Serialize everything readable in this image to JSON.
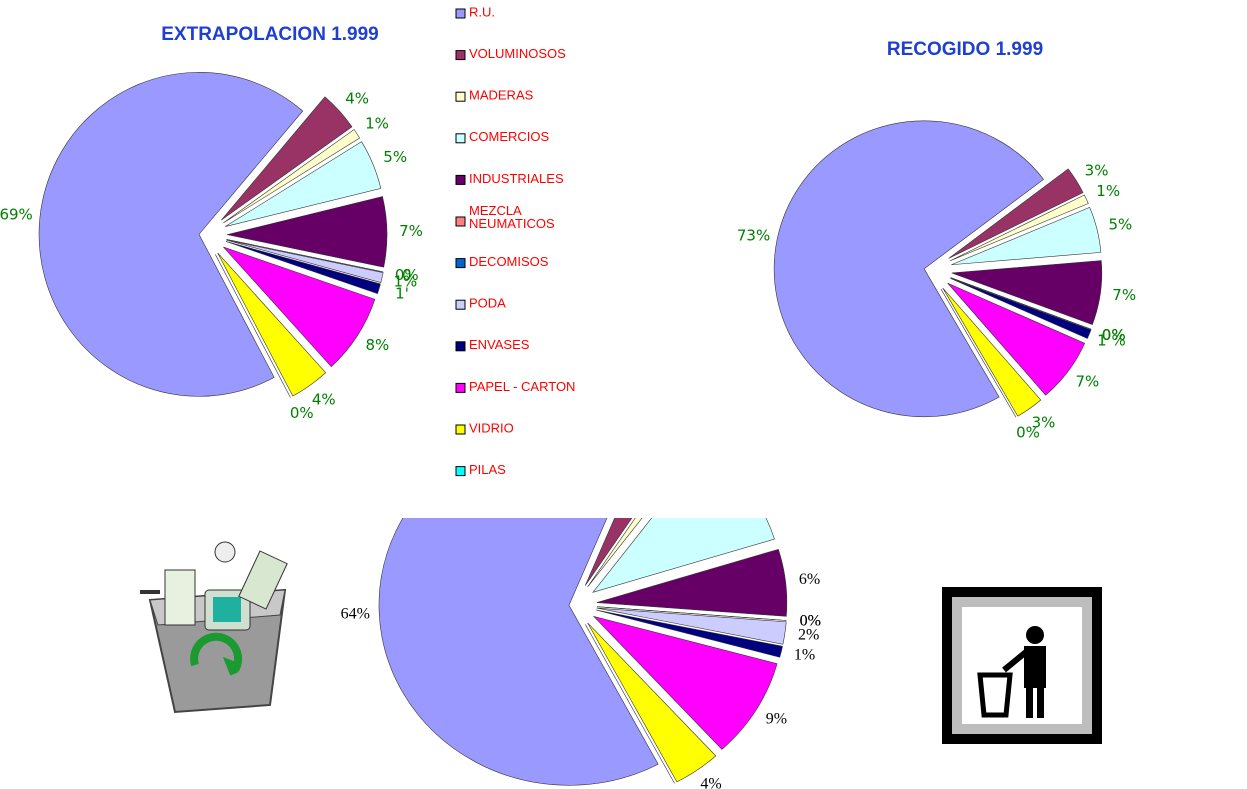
{
  "legend": {
    "categories": [
      "R.U.",
      "VOLUMINOSOS",
      "MADERAS",
      "COMERCIOS",
      "INDUSTRIALES",
      "MEZCLA NEUMATICOS",
      "DECOMISOS",
      "PODA",
      "ENVASES",
      "PAPEL - CARTON",
      "VIDRIO",
      "PILAS"
    ],
    "colors": [
      "#9999ff",
      "#993366",
      "#ffffcc",
      "#ccffff",
      "#660066",
      "#ff8080",
      "#0066cc",
      "#ccccff",
      "#000080",
      "#ff00ff",
      "#ffff00",
      "#00ffff"
    ]
  },
  "chart_data": [
    {
      "type": "pie",
      "title": "EXTRAPOLACION 1.999",
      "label_color": "#008000",
      "values": [
        69,
        4,
        1,
        5,
        7,
        0,
        0,
        1,
        1,
        8,
        4,
        0
      ],
      "value_labels": [
        "69%",
        "4%",
        "1%",
        "5%",
        "7%",
        "0",
        "0%",
        "1%",
        "1'",
        "8%",
        "4%",
        "0%"
      ]
    },
    {
      "type": "pie",
      "title": "RECOGIDO 1.999",
      "label_color": "#008000",
      "values": [
        73,
        3,
        1,
        5,
        7,
        0,
        0,
        0,
        1,
        7,
        3,
        0
      ],
      "value_labels": [
        "73%",
        "3%",
        "1%",
        "5%",
        "7%",
        "0%",
        "0%",
        "0%",
        "1 %",
        "7%",
        "3%",
        "0%"
      ]
    },
    {
      "type": "pie",
      "label_color": "#000000",
      "values": [
        64,
        3,
        1,
        10,
        6,
        0,
        0,
        2,
        1,
        9,
        4,
        0
      ],
      "value_labels": [
        "64%",
        null,
        null,
        null,
        "6%",
        "0%",
        "0%",
        "2%",
        "1%",
        "9%",
        "4%",
        "0%"
      ]
    }
  ]
}
